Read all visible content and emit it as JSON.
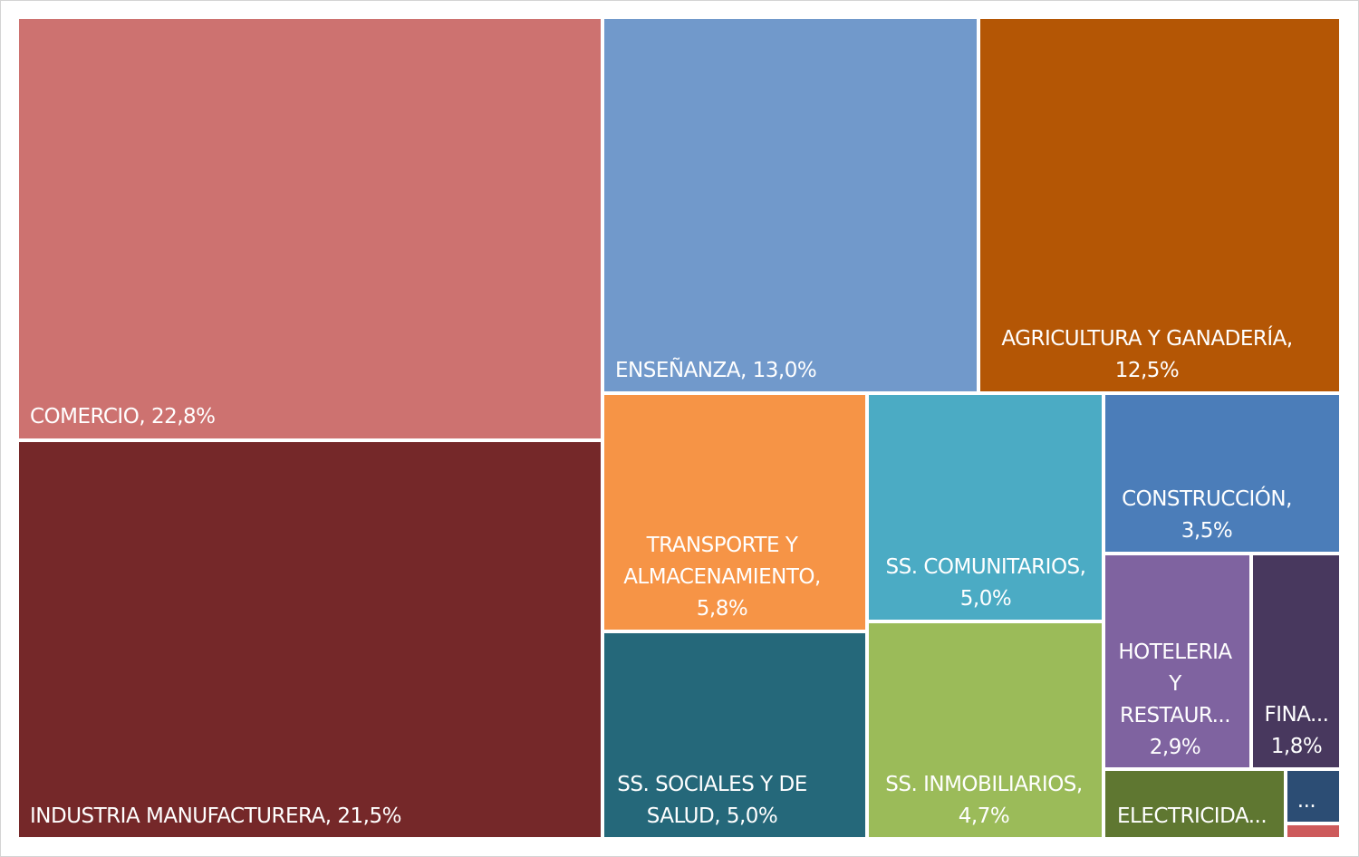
{
  "chart_data": {
    "type": "treemap",
    "title": "",
    "unit": "%",
    "items": [
      {
        "name": "COMERCIO",
        "label": "COMERCIO, 22,8%",
        "lines": [
          "COMERCIO, 22,8%"
        ],
        "value": 22.8,
        "color": "#cd7270"
      },
      {
        "name": "INDUSTRIA MANUFACTURERA",
        "label": "INDUSTRIA MANUFACTURERA, 21,5%",
        "lines": [
          "INDUSTRIA MANUFACTURERA, 21,5%"
        ],
        "value": 21.5,
        "color": "#752829"
      },
      {
        "name": "ENSEÑANZA",
        "label": "ENSEÑANZA, 13,0%",
        "lines": [
          "ENSEÑANZA, 13,0%"
        ],
        "value": 13.0,
        "color": "#7199cb"
      },
      {
        "name": "AGRICULTURA Y GANADERÍA",
        "label": "AGRICULTURA Y GANADERÍA, 12,5%",
        "lines": [
          "AGRICULTURA Y GANADERÍA,",
          "12,5%"
        ],
        "value": 12.5,
        "color": "#b45605"
      },
      {
        "name": "TRANSPORTE Y ALMACENAMIENTO",
        "label": "TRANSPORTE Y ALMACENAMIENTO, 5,8%",
        "lines": [
          "TRANSPORTE Y",
          "ALMACENAMIENTO,",
          "5,8%"
        ],
        "value": 5.8,
        "color": "#f69446"
      },
      {
        "name": "SS. SOCIALES Y DE SALUD",
        "label": "SS. SOCIALES Y DE SALUD, 5,0%",
        "lines": [
          "SS. SOCIALES Y DE",
          "SALUD, 5,0%"
        ],
        "value": 5.0,
        "color": "#25687a"
      },
      {
        "name": "SS. COMUNITARIOS",
        "label": "SS. COMUNITARIOS, 5,0%",
        "lines": [
          "SS. COMUNITARIOS,",
          "5,0%"
        ],
        "value": 5.0,
        "color": "#4babc4"
      },
      {
        "name": "SS. INMOBILIARIOS",
        "label": "SS. INMOBILIARIOS, 4,7%",
        "lines": [
          "SS. INMOBILIARIOS,",
          "4,7%"
        ],
        "value": 4.7,
        "color": "#9bbb59"
      },
      {
        "name": "CONSTRUCCIÓN",
        "label": "CONSTRUCCIÓN, 3,5%",
        "lines": [
          "CONSTRUCCIÓN,",
          "3,5%"
        ],
        "value": 3.5,
        "color": "#4b7db9"
      },
      {
        "name": "HOTELERIA Y RESTAUR...",
        "label": "HOTELERIA Y RESTAUR... 2,9%",
        "lines": [
          "HOTELERIA",
          "Y",
          "RESTAUR...",
          "2,9%"
        ],
        "value": 2.9,
        "color": "#7f63a0"
      },
      {
        "name": "FINA...",
        "label": "FINA... 1,8%",
        "lines": [
          "FINA...",
          "1,8%"
        ],
        "value": 1.8,
        "color": "#48385e"
      },
      {
        "name": "ELECTRICIDA...",
        "label": "ELECTRICIDA...",
        "lines": [
          "ELECTRICIDA..."
        ],
        "value": null,
        "color": "#5f7731"
      },
      {
        "name": "...",
        "label": "...",
        "lines": [
          "..."
        ],
        "value": null,
        "color": "#2c4d74"
      },
      {
        "name": "",
        "label": "",
        "lines": [],
        "value": null,
        "color": "#cd5a5b"
      }
    ]
  }
}
